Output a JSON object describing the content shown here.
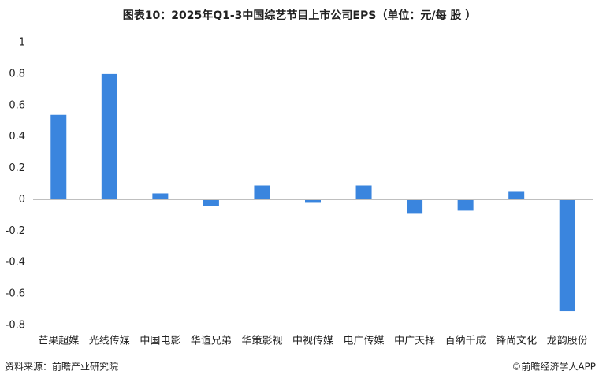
{
  "chart_data": {
    "type": "bar",
    "title": "图表10：2025年Q1-3中国综艺节目上市公司EPS（单位：元/每 股 ）",
    "categories": [
      "芒果超媒",
      "光线传媒",
      "中国电影",
      "华谊兄弟",
      "华策影视",
      "中视传媒",
      "电广传媒",
      "中广天择",
      "百纳千成",
      "锋尚文化",
      "龙韵股份"
    ],
    "values": [
      0.54,
      0.8,
      0.04,
      -0.04,
      0.09,
      -0.02,
      0.09,
      -0.09,
      -0.07,
      0.05,
      -0.71
    ],
    "color": "#3a85de",
    "ylim": [
      -0.8,
      1
    ],
    "yticks": [
      -0.8,
      -0.6,
      -0.4,
      -0.2,
      0,
      0.2,
      0.4,
      0.6,
      0.8,
      1
    ],
    "grid": false,
    "source": "资料来源：前瞻产业研究院",
    "credit": "©前瞻经济学人APP"
  }
}
